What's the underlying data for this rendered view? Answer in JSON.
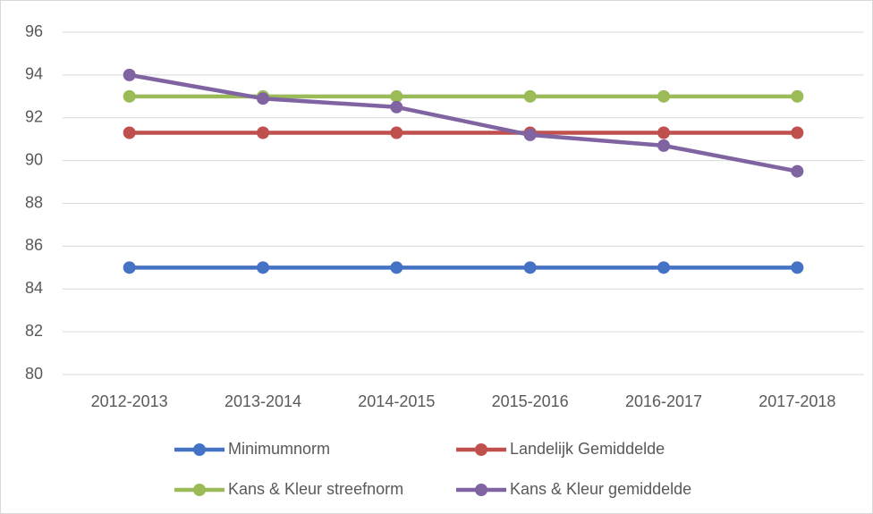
{
  "chart_data": {
    "type": "line",
    "categories": [
      "2012-2013",
      "2013-2014",
      "2014-2015",
      "2015-2016",
      "2016-2017",
      "2017-2018"
    ],
    "series": [
      {
        "name": "Minimumnorm",
        "color": "#4472c4",
        "values": [
          85,
          85,
          85,
          85,
          85,
          85
        ]
      },
      {
        "name": "Landelijk Gemiddelde",
        "color": "#c0504d",
        "values": [
          91.3,
          91.3,
          91.3,
          91.3,
          91.3,
          91.3
        ]
      },
      {
        "name": "Kans & Kleur streefnorm",
        "color": "#9bbb59",
        "values": [
          93,
          93,
          93,
          93,
          93,
          93
        ]
      },
      {
        "name": "Kans & Kleur gemiddelde",
        "color": "#8064a2",
        "values": [
          94,
          92.9,
          92.5,
          91.2,
          90.7,
          89.5
        ]
      }
    ],
    "ylim": [
      80,
      96
    ],
    "yticks": [
      80,
      82,
      84,
      86,
      88,
      90,
      92,
      94,
      96
    ],
    "grid": true,
    "legend": "bottom"
  }
}
